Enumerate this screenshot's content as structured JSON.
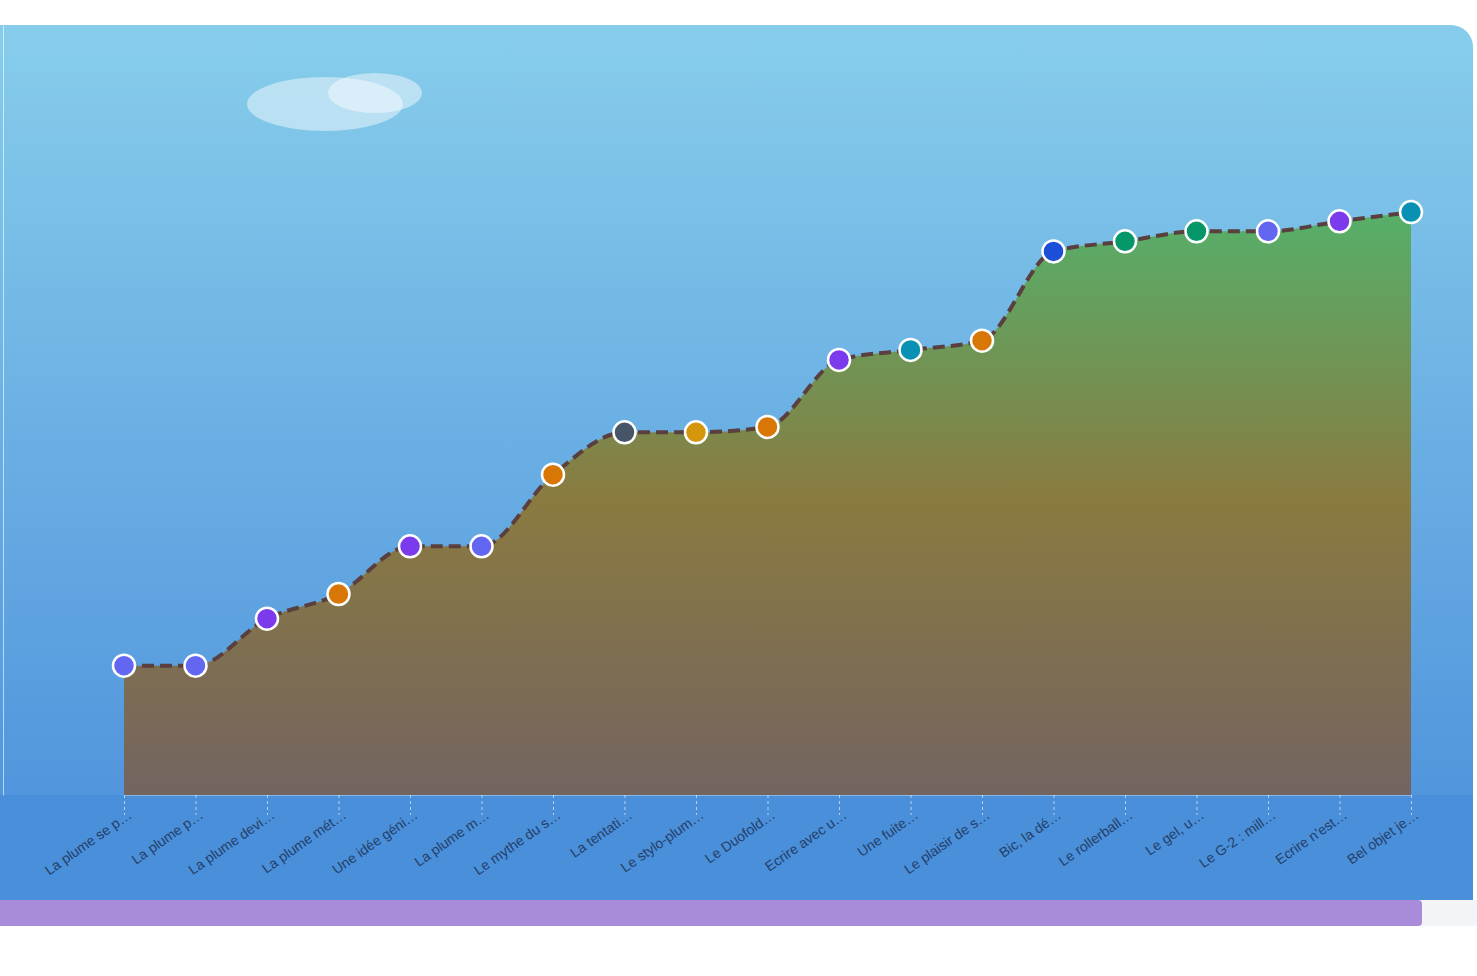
{
  "chart_data": {
    "type": "area",
    "categories": [
      "La plume se p…",
      "La plume p…",
      "La plume devi…",
      "La plume mét…",
      "Une idée géni…",
      "La plume m…",
      "Le mythe du s…",
      "La tentati…",
      "Le stylo-plum…",
      "Le Duofold…",
      "Ecrire avec u…",
      "Une fuite…",
      "Le plaisir de s…",
      "Bic, la dé…",
      "Le rollerball…",
      "Le gel, u…",
      "Le G-2 : mill…",
      "Ecrire n'est…",
      "Bel objet je…"
    ],
    "values": [
      16.8,
      16.8,
      22.9,
      26.1,
      32.3,
      32.3,
      41.6,
      47.1,
      47.1,
      47.8,
      56.5,
      57.8,
      59.0,
      70.6,
      71.9,
      73.2,
      73.2,
      74.5,
      75.7
    ],
    "colors": [
      "#6366f1",
      "#6366f1",
      "#7c3aed",
      "#d97706",
      "#7c3aed",
      "#6366f1",
      "#d97706",
      "#475569",
      "#d4960a",
      "#d97706",
      "#7c3aed",
      "#0891b2",
      "#d97706",
      "#1d4ed8",
      "#059669",
      "#059669",
      "#6366f1",
      "#7c3aed",
      "#0891b2"
    ],
    "ylim": [
      0,
      100
    ],
    "tick_labels": "x",
    "grid": false,
    "marker": "circle",
    "line_style": "dashed"
  }
}
